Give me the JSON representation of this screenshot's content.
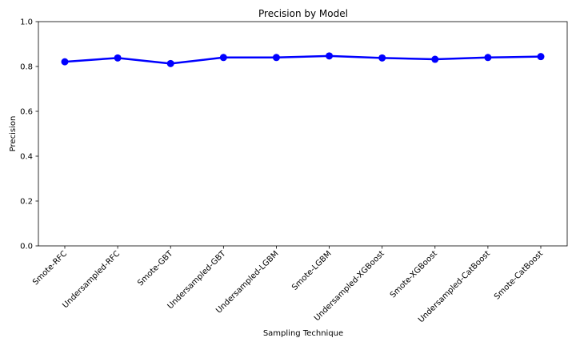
{
  "chart_data": {
    "type": "line",
    "title": "Precision by Model",
    "xlabel": "Sampling Technique",
    "ylabel": "Precision",
    "categories": [
      "Smote-RFC",
      "Undersampled-RFC",
      "Smote-GBT",
      "Undersampled-GBT",
      "Undersampled-LGBM",
      "Smote-LGBM",
      "Undersampled-XGBoost",
      "Smote-XGBoost",
      "Undersampled-CatBoost",
      "Smote-CatBoost"
    ],
    "series": [
      {
        "values": [
          0.821,
          0.838,
          0.813,
          0.84,
          0.84,
          0.847,
          0.838,
          0.832,
          0.84,
          0.844
        ],
        "color": "#0000ff"
      }
    ],
    "ylim": [
      0,
      1.0
    ],
    "yticks": [
      {
        "value": 0.0,
        "label": "0.0"
      },
      {
        "value": 0.2,
        "label": "0.2"
      },
      {
        "value": 0.4,
        "label": "0.4"
      },
      {
        "value": 0.6,
        "label": "0.6"
      },
      {
        "value": 0.8,
        "label": "0.8"
      },
      {
        "value": 1.0,
        "label": "1.0"
      }
    ],
    "grid": false,
    "legend": "none",
    "marker": "circle"
  }
}
